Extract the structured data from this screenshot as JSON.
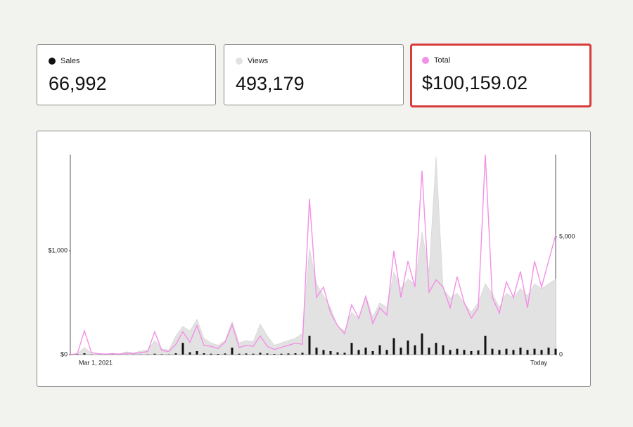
{
  "chart_data": {
    "type": "line",
    "categories": [
      "Mar 1, 2021",
      null,
      null,
      null,
      null,
      null,
      null,
      null,
      null,
      null,
      null,
      null,
      null,
      null,
      null,
      null,
      null,
      null,
      null,
      null,
      null,
      null,
      null,
      null,
      null,
      null,
      null,
      null,
      null,
      null,
      null,
      null,
      null,
      null,
      null,
      null,
      null,
      null,
      null,
      null,
      null,
      null,
      null,
      null,
      null,
      null,
      null,
      null,
      null,
      null,
      null,
      null,
      null,
      null,
      null,
      null,
      null,
      null,
      null,
      null,
      null,
      null,
      null,
      null,
      null,
      null,
      null,
      null,
      null,
      "Today"
    ],
    "ylim": [
      0,
      1925
    ],
    "yticks": [
      {
        "value": 0,
        "label": "$0"
      },
      {
        "value": 1000,
        "label": "$1,000"
      }
    ],
    "y2lim": [
      0,
      8480
    ],
    "y2ticks": [
      0,
      {
        "value": 5000,
        "label": "5,000"
      }
    ],
    "series": [
      {
        "name": "Sales",
        "summary": "66,992",
        "color": "#111111",
        "mark": "bar",
        "axis": "y2",
        "values": [
          0,
          20,
          60,
          10,
          5,
          5,
          10,
          5,
          10,
          5,
          10,
          15,
          40,
          20,
          15,
          60,
          500,
          100,
          150,
          60,
          40,
          30,
          50,
          300,
          40,
          50,
          40,
          80,
          50,
          30,
          40,
          50,
          60,
          80,
          800,
          300,
          200,
          150,
          100,
          80,
          500,
          200,
          300,
          150,
          400,
          200,
          700,
          300,
          600,
          400,
          900,
          300,
          500,
          400,
          200,
          250,
          200,
          150,
          180,
          800,
          250,
          200,
          250,
          200,
          300,
          200,
          250,
          200,
          300,
          250
        ]
      },
      {
        "name": "Views",
        "summary": "493,179",
        "color": "#e2e2e2",
        "mark": "area",
        "axis": "y2",
        "values": [
          0,
          50,
          300,
          80,
          40,
          30,
          60,
          40,
          120,
          80,
          150,
          200,
          600,
          250,
          200,
          800,
          1200,
          1000,
          1500,
          700,
          500,
          400,
          600,
          1400,
          500,
          600,
          550,
          1300,
          800,
          400,
          500,
          600,
          700,
          900,
          4500,
          3000,
          2500,
          2000,
          1200,
          1000,
          1800,
          1500,
          2500,
          1600,
          2200,
          2000,
          3500,
          2800,
          3200,
          3000,
          5200,
          3500,
          8400,
          2800,
          2400,
          2600,
          2200,
          1800,
          2200,
          3000,
          2600,
          2000,
          2600,
          2400,
          2800,
          2500,
          3000,
          2800,
          3000,
          3200
        ]
      },
      {
        "name": "Total",
        "summary": "$100,159.02",
        "color": "#f48fe6",
        "mark": "line",
        "axis": "y",
        "values": [
          0,
          10,
          230,
          20,
          10,
          5,
          10,
          5,
          15,
          10,
          20,
          30,
          220,
          40,
          30,
          100,
          220,
          120,
          280,
          90,
          80,
          60,
          120,
          290,
          70,
          90,
          80,
          180,
          80,
          50,
          70,
          90,
          110,
          100,
          1500,
          550,
          650,
          400,
          280,
          200,
          480,
          350,
          560,
          300,
          450,
          380,
          1000,
          550,
          900,
          650,
          1770,
          600,
          720,
          650,
          450,
          750,
          500,
          350,
          450,
          1925,
          550,
          400,
          700,
          550,
          800,
          450,
          900,
          650,
          900,
          1150
        ]
      }
    ]
  }
}
